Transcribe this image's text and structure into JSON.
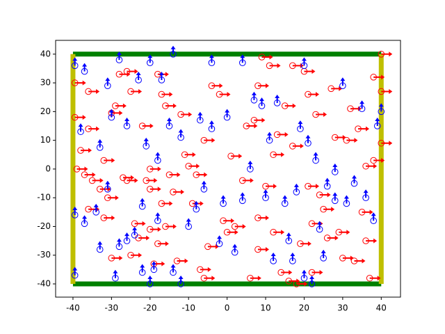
{
  "chart_data": {
    "type": "agents",
    "xlim": [
      -44.5,
      45
    ],
    "ylim": [
      -44.6,
      44.8
    ],
    "xticks": [
      -40,
      -30,
      -20,
      -10,
      0,
      10,
      20,
      30,
      40
    ],
    "yticks": [
      -40,
      -30,
      -20,
      -10,
      0,
      10,
      20,
      30,
      40
    ],
    "walls": [
      {
        "x": [
          -40,
          40
        ],
        "y": [
          40,
          40
        ],
        "color": "#008000"
      },
      {
        "x": [
          -40,
          40
        ],
        "y": [
          -40,
          -40
        ],
        "color": "#008000"
      },
      {
        "x": [
          -40,
          -40
        ],
        "y": [
          -40,
          40
        ],
        "color": "#bfbf00"
      },
      {
        "x": [
          40,
          40
        ],
        "y": [
          -40,
          40
        ],
        "color": "#bfbf00"
      }
    ],
    "series": [
      {
        "color": "#ff0000",
        "direction": "right",
        "x": [
          -39.5,
          -39.5,
          -39,
          -37,
          -38,
          -36,
          -36,
          -36,
          -35,
          -33,
          -32,
          -31,
          -32,
          -30,
          -30,
          -29,
          -28,
          -27,
          -26,
          -25,
          -26,
          -25,
          -24,
          -23,
          -22,
          -21,
          -20,
          -20,
          -20,
          -19,
          -18,
          -17,
          -17,
          -18,
          -16,
          -16,
          -15,
          -14,
          -13,
          -12,
          -11,
          -10,
          -9,
          -8,
          -7,
          -6,
          -6,
          -5,
          -4,
          -2,
          -1,
          0,
          1,
          2,
          4,
          5,
          6,
          7,
          8,
          8,
          8,
          9,
          10,
          11,
          12,
          13,
          14,
          15,
          16,
          17,
          18,
          19,
          20,
          21,
          22,
          23,
          24,
          25,
          26,
          27,
          28,
          29,
          30,
          31,
          32,
          33,
          35,
          36,
          36,
          37,
          38,
          38,
          40,
          40,
          40,
          34,
          21,
          17,
          22,
          12
        ],
        "y": [
          30,
          18,
          0,
          -2,
          6.5,
          -14,
          14,
          27,
          -4,
          -7,
          3,
          -10,
          -17,
          -31,
          19.5,
          22,
          33,
          -3,
          -4,
          -30,
          34,
          27,
          -19,
          -24,
          15,
          -4,
          -7,
          -21,
          0,
          -33,
          -26,
          -12,
          26,
          33,
          -20,
          22,
          -2,
          -8,
          -32,
          19,
          5,
          1,
          -12,
          -2,
          -35,
          -38,
          10,
          -27,
          29,
          26,
          -18,
          -22,
          4.5,
          -20,
          -4,
          15,
          -38,
          17,
          -17,
          -28,
          29,
          39,
          -6,
          36,
          -22,
          12,
          -36,
          22,
          -39,
          36,
          -40,
          -26,
          34,
          -6,
          -19,
          19,
          -9,
          -14,
          -24,
          28,
          11,
          -22,
          -31,
          10,
          21,
          -32,
          -15,
          -25,
          1,
          -38,
          3,
          32,
          40,
          27,
          9,
          14,
          26,
          8,
          -36,
          5
        ]
      },
      {
        "color": "#0000ff",
        "direction": "up",
        "x": [
          -39.5,
          -39.5,
          -39.5,
          -37,
          -38,
          -37,
          -34,
          -33,
          -33,
          -31,
          -30,
          -31,
          -29,
          -28,
          -28,
          -26,
          -26,
          -24,
          -23,
          -22,
          -22,
          -21,
          -20,
          -20,
          -19,
          -18,
          -18,
          -17,
          -15,
          -14,
          -14,
          -12,
          -12,
          -10,
          -8,
          -7,
          -6,
          -4,
          -4,
          -2,
          -1,
          0,
          2,
          4,
          4,
          6,
          7,
          9,
          10,
          11,
          12,
          13,
          15,
          16,
          17,
          18,
          19,
          20,
          20,
          21,
          22,
          23,
          24,
          25,
          26,
          28,
          30,
          31,
          33,
          35,
          36,
          38,
          39,
          40,
          28
        ],
        "y": [
          36,
          -16,
          -37,
          34,
          13,
          -19,
          -15,
          -28,
          7.5,
          -7,
          18,
          29,
          -38,
          -27,
          38,
          15,
          -25,
          -23,
          31,
          -36,
          -13,
          8,
          37,
          -40,
          -35,
          3,
          -18,
          31,
          15,
          -36,
          40,
          -40,
          11,
          -20,
          -14,
          17,
          -7,
          37,
          14,
          -26,
          -12,
          18,
          -29,
          37,
          -11,
          0,
          24,
          22,
          -10,
          10,
          -32,
          23,
          -12,
          -25,
          -32,
          -8,
          14,
          -38,
          36,
          9,
          -40,
          3,
          -21,
          -31,
          -6,
          -11,
          29,
          -12,
          -5,
          21,
          -10,
          -18,
          15,
          20,
          -1
        ]
      }
    ]
  }
}
